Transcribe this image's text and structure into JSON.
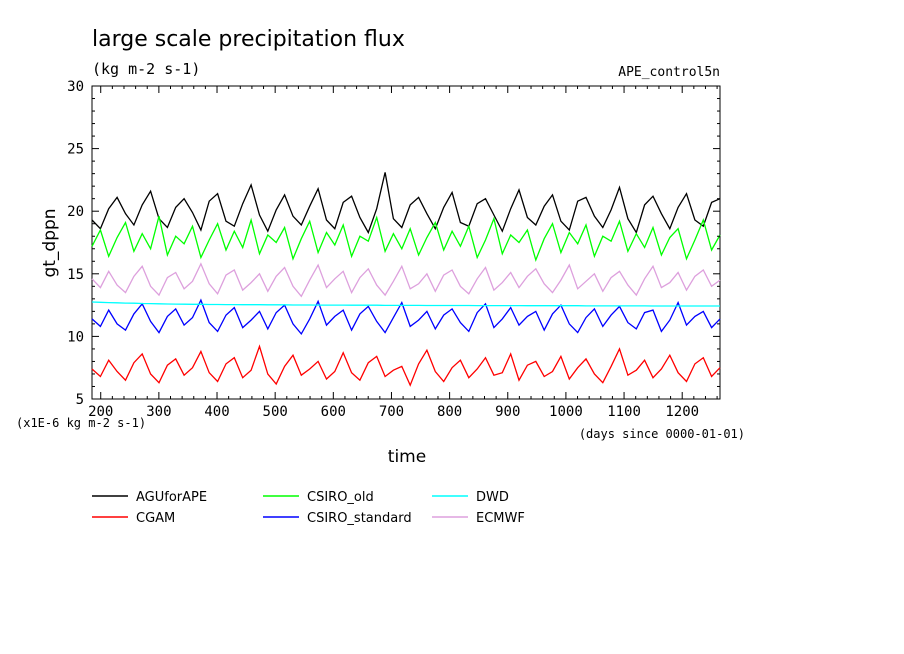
{
  "chart_data": {
    "type": "line",
    "title": "large scale precipitation flux",
    "units_label": "(kg m-2 s-1)",
    "run_label": "APE_control5n",
    "ylabel": "gt_dppn",
    "xlabel": "time",
    "y_scale_note": "(x1E-6 kg m-2 s-1)",
    "x_unit_note": "(days since 0000-01-01)",
    "xlim": [
      185,
      1265
    ],
    "ylim": [
      5,
      30
    ],
    "x_ticks": [
      200,
      300,
      400,
      500,
      600,
      700,
      800,
      900,
      1000,
      1100,
      1200
    ],
    "y_ticks": [
      5,
      10,
      15,
      20,
      25,
      30
    ],
    "series": [
      {
        "name": "AGUforAPE",
        "color": "#000000",
        "values": [
          19.3,
          18.6,
          20.2,
          21.1,
          19.8,
          18.9,
          20.5,
          21.6,
          19.4,
          18.7,
          20.3,
          21.0,
          19.9,
          18.5,
          20.8,
          21.4,
          19.2,
          18.8,
          20.6,
          22.1,
          19.7,
          18.4,
          20.1,
          21.3,
          19.6,
          18.9,
          20.4,
          21.8,
          19.3,
          18.6,
          20.7,
          21.2,
          19.5,
          18.3,
          20.2,
          23.1,
          19.4,
          18.7,
          20.5,
          21.1,
          19.8,
          18.6,
          20.3,
          21.5,
          19.1,
          18.8,
          20.6,
          21.0,
          19.7,
          18.4,
          20.2,
          21.7,
          19.5,
          18.9,
          20.4,
          21.3,
          19.2,
          18.5,
          20.8,
          21.1,
          19.6,
          18.7,
          20.1,
          21.9,
          19.4,
          18.3,
          20.5,
          21.2,
          19.8,
          18.6,
          20.3,
          21.4,
          19.3,
          18.8,
          20.7,
          21.0
        ]
      },
      {
        "name": "CGAM",
        "color": "#ff0000",
        "values": [
          7.4,
          6.8,
          8.1,
          7.2,
          6.5,
          7.9,
          8.6,
          7.0,
          6.3,
          7.7,
          8.2,
          6.9,
          7.5,
          8.8,
          7.1,
          6.4,
          7.8,
          8.3,
          6.7,
          7.3,
          9.2,
          7.0,
          6.2,
          7.6,
          8.5,
          6.9,
          7.4,
          8.0,
          6.6,
          7.2,
          8.7,
          7.1,
          6.5,
          7.9,
          8.4,
          6.8,
          7.3,
          7.6,
          6.1,
          7.8,
          8.9,
          7.2,
          6.4,
          7.5,
          8.1,
          6.7,
          7.4,
          8.3,
          6.9,
          7.1,
          8.6,
          6.5,
          7.7,
          8.0,
          6.8,
          7.2,
          8.4,
          6.6,
          7.5,
          8.2,
          7.0,
          6.3,
          7.6,
          9.0,
          6.9,
          7.3,
          8.1,
          6.7,
          7.4,
          8.5,
          7.1,
          6.4,
          7.8,
          8.3,
          6.8,
          7.5
        ]
      },
      {
        "name": "CSIRO_old",
        "color": "#00ff00",
        "values": [
          17.2,
          18.5,
          16.4,
          17.9,
          19.1,
          16.8,
          18.2,
          17.0,
          19.6,
          16.5,
          18.0,
          17.4,
          18.8,
          16.3,
          17.7,
          19.0,
          16.9,
          18.4,
          17.1,
          19.3,
          16.6,
          18.1,
          17.5,
          18.7,
          16.2,
          17.8,
          19.2,
          16.7,
          18.3,
          17.3,
          18.9,
          16.4,
          18.0,
          17.6,
          19.5,
          16.8,
          18.2,
          17.0,
          18.6,
          16.5,
          17.9,
          19.1,
          16.9,
          18.4,
          17.2,
          18.8,
          16.3,
          17.7,
          19.4,
          16.6,
          18.1,
          17.5,
          18.5,
          16.1,
          17.8,
          19.0,
          16.7,
          18.3,
          17.4,
          18.9,
          16.4,
          18.0,
          17.6,
          19.2,
          16.8,
          18.2,
          17.1,
          18.7,
          16.5,
          17.9,
          18.6,
          16.2,
          17.7,
          19.3,
          16.9,
          18.1
        ]
      },
      {
        "name": "CSIRO_standard",
        "color": "#0000ff",
        "values": [
          11.4,
          10.8,
          12.1,
          11.0,
          10.5,
          11.8,
          12.6,
          11.2,
          10.3,
          11.6,
          12.2,
          10.9,
          11.5,
          12.9,
          11.1,
          10.4,
          11.7,
          12.3,
          10.7,
          11.3,
          12.0,
          10.6,
          11.9,
          12.5,
          11.0,
          10.2,
          11.4,
          12.8,
          10.9,
          11.6,
          12.1,
          10.5,
          11.8,
          12.4,
          11.2,
          10.3,
          11.5,
          12.7,
          10.8,
          11.3,
          12.0,
          10.6,
          11.7,
          12.2,
          11.1,
          10.4,
          11.9,
          12.6,
          10.7,
          11.4,
          12.3,
          10.9,
          11.6,
          12.0,
          10.5,
          11.8,
          12.5,
          11.0,
          10.3,
          11.5,
          12.2,
          10.8,
          11.7,
          12.4,
          11.1,
          10.6,
          11.9,
          12.1,
          10.4,
          11.3,
          12.7,
          10.9,
          11.6,
          12.0,
          10.7,
          11.4
        ]
      },
      {
        "name": "DWD",
        "color": "#00ffff",
        "values": [
          12.75,
          12.72,
          12.7,
          12.68,
          12.66,
          12.65,
          12.63,
          12.62,
          12.6,
          12.59,
          12.58,
          12.57,
          12.56,
          12.56,
          12.55,
          12.55,
          12.54,
          12.54,
          12.53,
          12.53,
          12.53,
          12.52,
          12.52,
          12.52,
          12.51,
          12.51,
          12.51,
          12.5,
          12.5,
          12.5,
          12.5,
          12.49,
          12.49,
          12.49,
          12.49,
          12.48,
          12.48,
          12.48,
          12.48,
          12.48,
          12.47,
          12.47,
          12.47,
          12.47,
          12.47,
          12.47,
          12.46,
          12.46,
          12.46,
          12.46,
          12.46,
          12.46,
          12.45,
          12.45,
          12.45,
          12.45,
          12.45,
          12.45,
          12.45,
          12.44,
          12.44,
          12.44,
          12.44,
          12.44,
          12.44,
          12.44,
          12.44,
          12.43,
          12.43,
          12.43,
          12.43,
          12.43,
          12.43,
          12.43,
          12.43,
          12.43
        ]
      },
      {
        "name": "ECMWF",
        "color": "#dda0dd",
        "values": [
          14.6,
          13.9,
          15.2,
          14.1,
          13.5,
          14.8,
          15.6,
          14.0,
          13.3,
          14.7,
          15.1,
          13.8,
          14.4,
          15.8,
          14.2,
          13.4,
          14.9,
          15.3,
          13.7,
          14.3,
          15.0,
          13.6,
          14.8,
          15.5,
          14.0,
          13.2,
          14.5,
          15.7,
          13.9,
          14.6,
          15.2,
          13.5,
          14.7,
          15.4,
          14.1,
          13.3,
          14.4,
          15.6,
          13.8,
          14.2,
          15.0,
          13.6,
          14.9,
          15.3,
          14.0,
          13.4,
          14.6,
          15.5,
          13.7,
          14.3,
          15.1,
          13.9,
          14.8,
          15.4,
          14.2,
          13.5,
          14.5,
          15.7,
          13.8,
          14.4,
          15.0,
          13.6,
          14.7,
          15.2,
          14.1,
          13.3,
          14.6,
          15.6,
          13.9,
          14.3,
          15.1,
          13.7,
          14.8,
          15.3,
          14.0,
          14.5
        ]
      }
    ]
  }
}
